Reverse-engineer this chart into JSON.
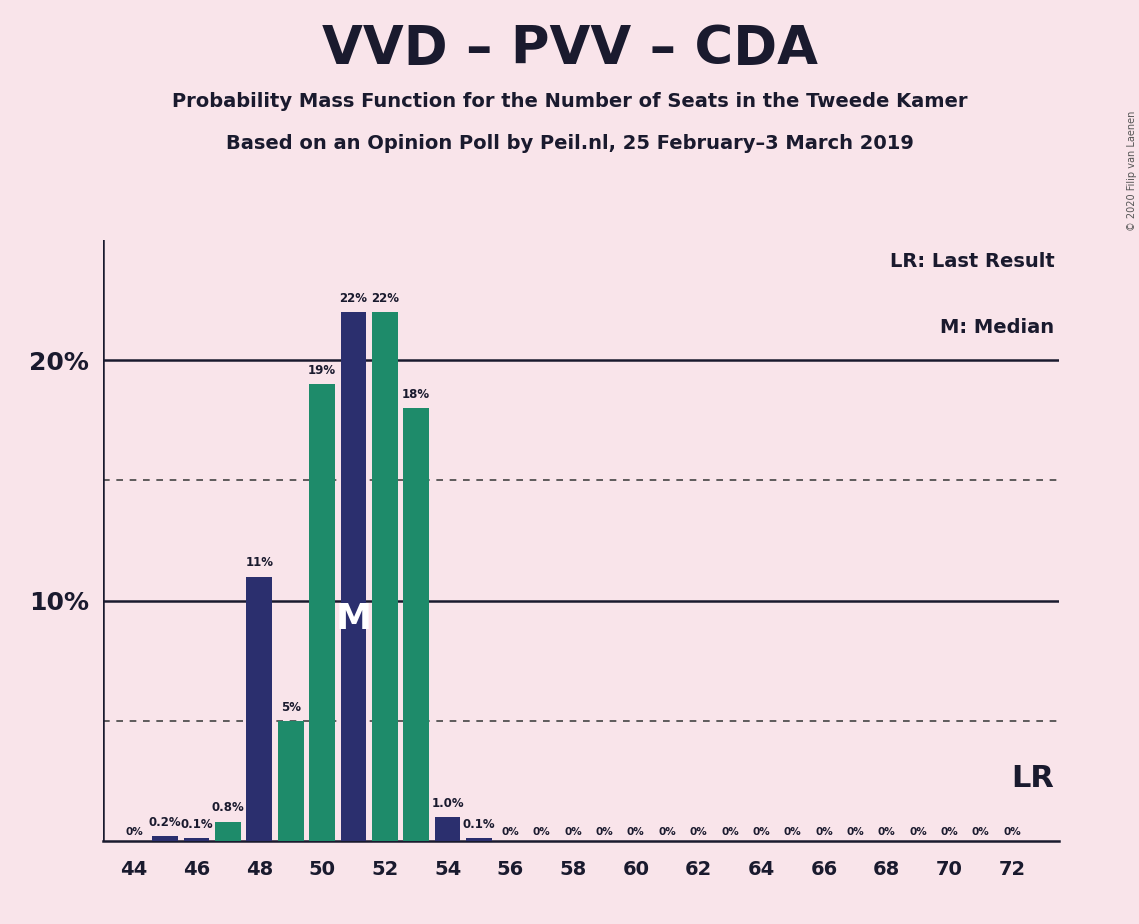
{
  "title": "VVD – PVV – CDA",
  "subtitle1": "Probability Mass Function for the Number of Seats in the Tweede Kamer",
  "subtitle2": "Based on an Opinion Poll by Peil.nl, 25 February–3 March 2019",
  "copyright": "© 2020 Filip van Laenen",
  "background_color": "#f9e4ea",
  "navy_color": "#2b2f6e",
  "teal_color": "#1e8b6a",
  "seats": [
    44,
    45,
    46,
    47,
    48,
    49,
    50,
    51,
    52,
    53,
    54,
    55,
    56,
    57,
    58,
    59,
    60,
    61,
    62,
    63,
    64,
    65,
    66,
    67,
    68,
    69,
    70,
    71,
    72
  ],
  "values": [
    0.0,
    0.2,
    0.1,
    0.8,
    11.0,
    5.0,
    19.0,
    22.0,
    22.0,
    18.0,
    1.0,
    0.1,
    0.0,
    0.0,
    0.0,
    0.0,
    0.0,
    0.0,
    0.0,
    0.0,
    0.0,
    0.0,
    0.0,
    0.0,
    0.0,
    0.0,
    0.0,
    0.0,
    0.0
  ],
  "colors": [
    "#2b2f6e",
    "#2b2f6e",
    "#2b2f6e",
    "#1e8b6a",
    "#2b2f6e",
    "#1e8b6a",
    "#1e8b6a",
    "#2b2f6e",
    "#1e8b6a",
    "#1e8b6a",
    "#2b2f6e",
    "#2b2f6e",
    "#2b2f6e",
    "#2b2f6e",
    "#2b2f6e",
    "#2b2f6e",
    "#2b2f6e",
    "#2b2f6e",
    "#2b2f6e",
    "#2b2f6e",
    "#2b2f6e",
    "#2b2f6e",
    "#2b2f6e",
    "#2b2f6e",
    "#2b2f6e",
    "#2b2f6e",
    "#2b2f6e",
    "#2b2f6e",
    "#2b2f6e"
  ],
  "labels": [
    "0%",
    "0.2%",
    "0.1%",
    "0.8%",
    "11%",
    "5%",
    "19%",
    "22%",
    "22%",
    "18%",
    "1.0%",
    "0.1%",
    "0%",
    "0%",
    "0%",
    "0%",
    "0%",
    "0%",
    "0%",
    "0%",
    "0%",
    "0%",
    "0%",
    "0%",
    "0%",
    "0%",
    "0%",
    "0%",
    "0%"
  ],
  "xticks": [
    44,
    46,
    48,
    50,
    52,
    54,
    56,
    58,
    60,
    62,
    64,
    66,
    68,
    70,
    72
  ],
  "ymax": 25,
  "median_seat": 51,
  "lr_seat": 54,
  "legend_lr": "LR: Last Result",
  "legend_m": "M: Median",
  "lr_label": "LR"
}
